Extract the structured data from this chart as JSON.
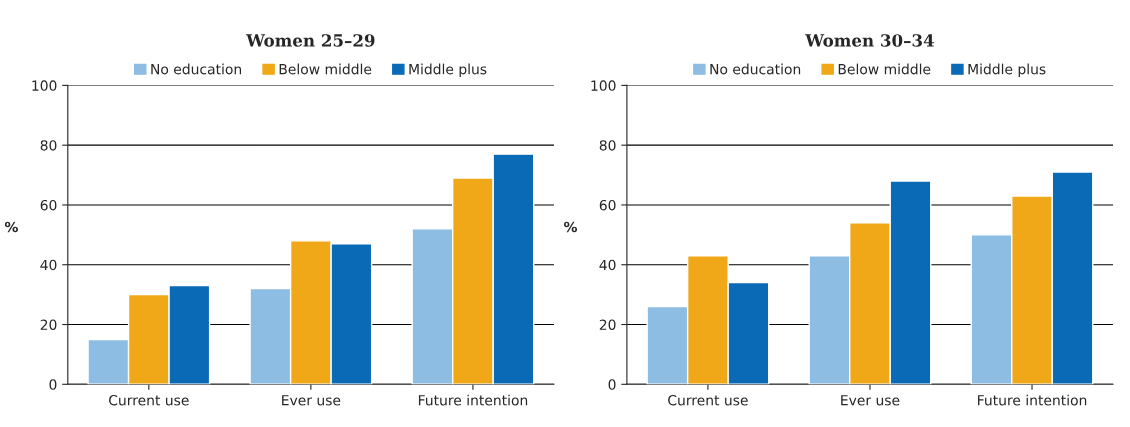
{
  "chart_data": [
    {
      "type": "bar",
      "title": "Women 25–29",
      "ylabel": "%",
      "categories": [
        "Current use",
        "Ever use",
        "Future intention"
      ],
      "series": [
        {
          "name": "No education",
          "color": "#8dbde3",
          "values": [
            15,
            32,
            52
          ]
        },
        {
          "name": "Below middle",
          "color": "#f0a818",
          "values": [
            30,
            48,
            69
          ]
        },
        {
          "name": "Middle plus",
          "color": "#0a6ab5",
          "values": [
            33,
            47,
            77
          ]
        }
      ],
      "ylim": [
        0,
        100
      ],
      "yticks": [
        0,
        20,
        40,
        60,
        80,
        100
      ],
      "grid": "y",
      "legend": "top"
    },
    {
      "type": "bar",
      "title": "Women 30–34",
      "ylabel": "%",
      "categories": [
        "Current use",
        "Ever use",
        "Future intention"
      ],
      "series": [
        {
          "name": "No education",
          "color": "#8dbde3",
          "values": [
            26,
            43,
            50
          ]
        },
        {
          "name": "Below middle",
          "color": "#f0a818",
          "values": [
            43,
            54,
            63
          ]
        },
        {
          "name": "Middle plus",
          "color": "#0a6ab5",
          "values": [
            34,
            68,
            71
          ]
        }
      ],
      "ylim": [
        0,
        100
      ],
      "yticks": [
        0,
        20,
        40,
        60,
        80,
        100
      ],
      "grid": "y",
      "legend": "top"
    }
  ]
}
